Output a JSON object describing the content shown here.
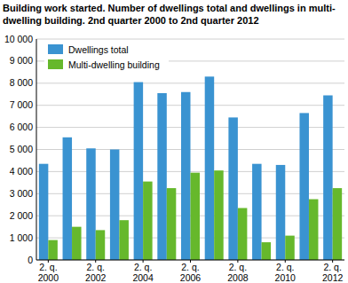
{
  "chart_data": {
    "type": "bar",
    "title": "Building work started. Number of dwellings total and dwellings in multi-dwelling building. 2nd quarter 2000 to 2nd quarter 2012",
    "categories": [
      "2. q. 2000",
      null,
      "2. q. 2002",
      null,
      "2. q. 2004",
      null,
      "2. q. 2006",
      null,
      "2. q. 2008",
      null,
      "2. q. 2010",
      null,
      "2. q. 2012"
    ],
    "series": [
      {
        "name": "Dwellings total",
        "color": "#3a93d1",
        "values": [
          4350,
          5550,
          5050,
          5000,
          8050,
          7550,
          7600,
          8300,
          6450,
          4350,
          4300,
          6650,
          7450
        ]
      },
      {
        "name": "Multi-dwelling building",
        "color": "#66b82c",
        "values": [
          900,
          1500,
          1350,
          1800,
          3550,
          3250,
          3950,
          4050,
          2350,
          800,
          1100,
          2750,
          3250
        ]
      }
    ],
    "ylim": [
      0,
      10000
    ],
    "yticks": [
      0,
      {
        "value": 1000,
        "label": "1 000"
      },
      {
        "value": 2000,
        "label": "2 000"
      },
      {
        "value": 3000,
        "label": "3 000"
      },
      {
        "value": 4000,
        "label": "4 000"
      },
      {
        "value": 5000,
        "label": "5 000"
      },
      {
        "value": 6000,
        "label": "6 000"
      },
      {
        "value": 7000,
        "label": "7 000"
      },
      {
        "value": 8000,
        "label": "8 000"
      },
      {
        "value": 9000,
        "label": "9 000"
      },
      {
        "value": 10000,
        "label": "10 000"
      }
    ],
    "grid": true,
    "legend": "top-left"
  }
}
